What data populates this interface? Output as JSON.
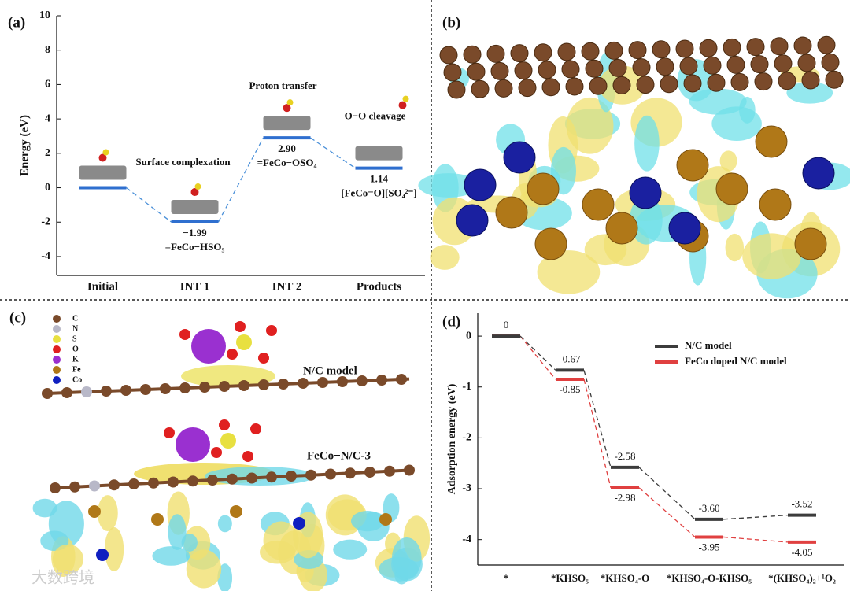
{
  "panels": {
    "a": "(a)",
    "b": "(b)",
    "c": "(c)",
    "d": "(d)"
  },
  "chart_data": [
    {
      "type": "level",
      "y_label": "Energy (eV)",
      "categories": [
        "Initial",
        "INT 1",
        "INT 2",
        "Products"
      ],
      "values": [
        0,
        -1.99,
        2.9,
        1.14
      ],
      "value_labels": [
        null,
        "−1.99",
        "2.90",
        "1.14"
      ],
      "state_labels": [
        null,
        "=FeCo−HSO₅",
        "=FeCo−OSO₄",
        "[FeCo=O][SO₄²⁻]"
      ],
      "annotations": [
        null,
        "Surface complexation",
        "Proton transfer",
        "O−O cleavage"
      ],
      "color": "#2f6fcf",
      "connector_color": "#4a90d9",
      "ylim": [
        -5.1,
        10
      ],
      "yticks": [
        -4,
        -2,
        0,
        2,
        4,
        6,
        8,
        10
      ]
    },
    {
      "type": "level",
      "y_label": "Adsorption energy (eV)",
      "categories": [
        "*",
        "*KHSO₅",
        "*KHSO₄-O",
        "*KHSO₄-O-KHSO₅",
        "*(KHSO₄)₂+¹O₂"
      ],
      "series": [
        {
          "name": "N/C model",
          "color": "#3c3c3c",
          "values": [
            0,
            -0.67,
            -2.58,
            -3.6,
            -3.52
          ],
          "value_labels": [
            "0",
            "-0.67",
            "-2.58",
            "-3.60",
            "-3.52"
          ]
        },
        {
          "name": "FeCo doped N/C model",
          "color": "#e04040",
          "values": [
            0,
            -0.85,
            -2.98,
            -3.95,
            -4.05
          ],
          "value_labels": [
            null,
            "-0.85",
            "-2.98",
            "-3.95",
            "-4.05"
          ]
        }
      ],
      "ylim": [
        -4.5,
        0.45
      ],
      "yticks": [
        -4,
        -3,
        -2,
        -1,
        0
      ],
      "legend": "upper right"
    }
  ],
  "panel_c": {
    "elements": [
      "C",
      "N",
      "S",
      "O",
      "K",
      "Fe",
      "Co"
    ],
    "element_colors": [
      "#7a4a2a",
      "#b8b8c8",
      "#e8e040",
      "#e02020",
      "#9a30d0",
      "#b07818",
      "#1020c0"
    ],
    "model_labels": [
      "N/C model",
      "FeCo−N/C-3"
    ]
  },
  "watermark": "大数跨境"
}
